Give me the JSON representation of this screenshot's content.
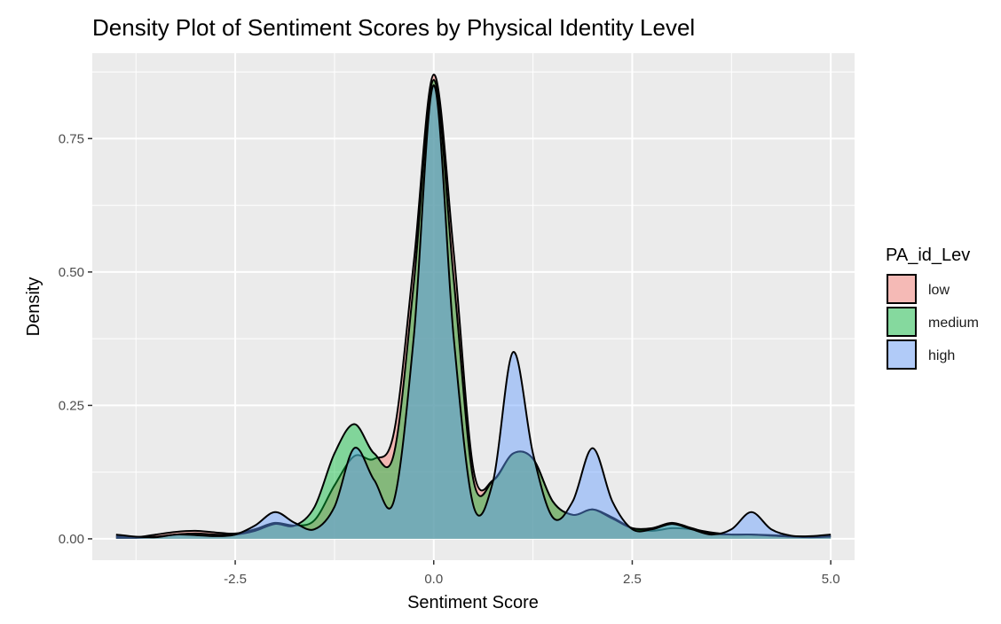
{
  "chart_data": {
    "type": "area",
    "title": "Density Plot of Sentiment Scores by Physical Identity Level",
    "xlabel": "Sentiment Score",
    "ylabel": "Density",
    "xlim": [
      -4.3,
      5.3
    ],
    "ylim": [
      -0.04,
      0.91
    ],
    "x_ticks": [
      -2.5,
      0.0,
      2.5,
      5.0
    ],
    "x_tick_labels": [
      "-2.5",
      "0.0",
      "2.5",
      "5.0"
    ],
    "y_ticks": [
      0.0,
      0.25,
      0.5,
      0.75
    ],
    "y_tick_labels": [
      "0.00",
      "0.25",
      "0.50",
      "0.75"
    ],
    "grid": true,
    "legend": {
      "title": "PA_id_Lev",
      "placement": "right"
    },
    "x": [
      -4,
      -3.75,
      -3.5,
      -3.25,
      -3,
      -2.75,
      -2.5,
      -2.25,
      -2,
      -1.75,
      -1.5,
      -1.25,
      -1,
      -0.75,
      -0.5,
      -0.25,
      0,
      0.25,
      0.5,
      0.75,
      1,
      1.25,
      1.5,
      1.75,
      2,
      2.25,
      2.5,
      2.75,
      3,
      3.25,
      3.5,
      3.75,
      4,
      4.25,
      4.5,
      4.75,
      5
    ],
    "series": [
      {
        "name": "low",
        "fill": "#f8766d",
        "values": [
          0.005,
          0.003,
          0.008,
          0.013,
          0.015,
          0.012,
          0.01,
          0.018,
          0.03,
          0.025,
          0.035,
          0.1,
          0.155,
          0.15,
          0.2,
          0.52,
          0.87,
          0.54,
          0.13,
          0.11,
          0.16,
          0.15,
          0.07,
          0.045,
          0.055,
          0.04,
          0.02,
          0.015,
          0.02,
          0.018,
          0.012,
          0.008,
          0.008,
          0.007,
          0.005,
          0.004,
          0.005
        ]
      },
      {
        "name": "medium",
        "fill": "#00ba38",
        "values": [
          0.002,
          0.002,
          0.004,
          0.008,
          0.01,
          0.008,
          0.008,
          0.015,
          0.028,
          0.025,
          0.06,
          0.16,
          0.215,
          0.16,
          0.16,
          0.48,
          0.86,
          0.49,
          0.11,
          0.11,
          0.16,
          0.15,
          0.07,
          0.045,
          0.055,
          0.038,
          0.02,
          0.02,
          0.03,
          0.02,
          0.01,
          0.008,
          0.008,
          0.006,
          0.004,
          0.003,
          0.004
        ]
      },
      {
        "name": "high",
        "fill": "#619cff",
        "values": [
          0.008,
          0.004,
          0.003,
          0.008,
          0.007,
          0.005,
          0.008,
          0.025,
          0.05,
          0.03,
          0.018,
          0.06,
          0.17,
          0.11,
          0.072,
          0.38,
          0.85,
          0.38,
          0.062,
          0.11,
          0.35,
          0.16,
          0.04,
          0.07,
          0.17,
          0.07,
          0.018,
          0.018,
          0.028,
          0.018,
          0.008,
          0.018,
          0.05,
          0.018,
          0.006,
          0.005,
          0.008
        ]
      }
    ]
  }
}
